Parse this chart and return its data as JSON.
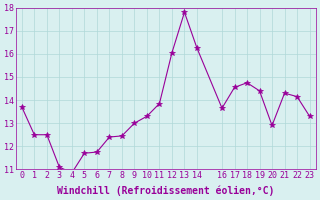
{
  "x": [
    0,
    1,
    2,
    3,
    4,
    5,
    6,
    7,
    8,
    9,
    10,
    11,
    12,
    13,
    14,
    16,
    17,
    18,
    19,
    20,
    21,
    22,
    23
  ],
  "y": [
    13.7,
    12.5,
    12.5,
    11.1,
    10.85,
    11.7,
    11.75,
    12.4,
    12.45,
    13.0,
    13.3,
    13.85,
    16.05,
    17.8,
    16.25,
    13.65,
    14.55,
    14.75,
    14.4,
    12.9,
    14.3,
    14.15,
    13.3
  ],
  "line_color": "#990099",
  "marker": "*",
  "marker_size": 4,
  "bg_color": "#d9f0f0",
  "grid_color": "#b0d8d8",
  "xlabel": "Windchill (Refroidissement éolien,°C)",
  "ylim": [
    11,
    18
  ],
  "xlim": [
    -0.5,
    23.5
  ],
  "yticks": [
    11,
    12,
    13,
    14,
    15,
    16,
    17,
    18
  ],
  "xticks": [
    0,
    1,
    2,
    3,
    4,
    5,
    6,
    7,
    8,
    9,
    10,
    11,
    12,
    13,
    14,
    16,
    17,
    18,
    19,
    20,
    21,
    22,
    23
  ],
  "tick_color": "#990099",
  "label_color": "#990099",
  "label_fontsize": 7,
  "tick_fontsize": 6
}
